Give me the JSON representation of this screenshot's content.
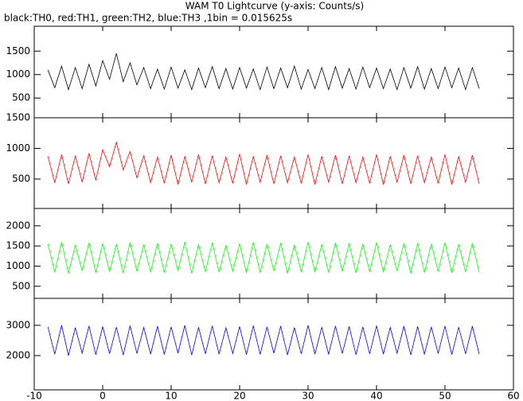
{
  "chart_data": [
    {
      "type": "line",
      "title": "WAM T0 Lightcurve (y-axis: Counts/s)",
      "subtitle": "black:TH0, red:TH1, green:TH2, blue:TH3 ,1bin = 0.015625s",
      "x": [
        -8,
        -7,
        -6,
        -5,
        -4,
        -3,
        -2,
        -1,
        0,
        1,
        2,
        3,
        4,
        5,
        6,
        7,
        8,
        9,
        10,
        11,
        12,
        13,
        14,
        15,
        16,
        17,
        18,
        19,
        20,
        21,
        22,
        23,
        24,
        25,
        26,
        27,
        28,
        29,
        30,
        31,
        32,
        33,
        34,
        35,
        36,
        37,
        38,
        39,
        40,
        41,
        42,
        43,
        44,
        45,
        46,
        47,
        48,
        49,
        50,
        51,
        52,
        53,
        54,
        55
      ],
      "values": [
        1100,
        720,
        1180,
        680,
        1150,
        700,
        1220,
        760,
        1300,
        900,
        1450,
        850,
        1250,
        780,
        1150,
        700,
        1120,
        690,
        1160,
        710,
        1100,
        680,
        1140,
        720,
        1170,
        700,
        1130,
        690,
        1150,
        710,
        1120,
        680,
        1160,
        700,
        1140,
        720,
        1180,
        690,
        1110,
        700,
        1150,
        680,
        1170,
        710,
        1130,
        690,
        1160,
        720,
        1140,
        700,
        1120,
        680,
        1150,
        710,
        1170,
        690,
        1130,
        700,
        1160,
        720,
        1140,
        680,
        1150,
        700
      ],
      "color": "#000000",
      "xlim": [
        -10,
        60
      ],
      "xticks": [
        -10,
        0,
        10,
        20,
        30,
        40,
        50,
        60
      ],
      "ylim": [
        80,
        2030
      ],
      "yticks": [
        500,
        1000,
        1500
      ]
    },
    {
      "type": "line",
      "x": [
        -8,
        -7,
        -6,
        -5,
        -4,
        -3,
        -2,
        -1,
        0,
        1,
        2,
        3,
        4,
        5,
        6,
        7,
        8,
        9,
        10,
        11,
        12,
        13,
        14,
        15,
        16,
        17,
        18,
        19,
        20,
        21,
        22,
        23,
        24,
        25,
        26,
        27,
        28,
        29,
        30,
        31,
        32,
        33,
        34,
        35,
        36,
        37,
        38,
        39,
        40,
        41,
        42,
        43,
        44,
        45,
        46,
        47,
        48,
        49,
        50,
        51,
        52,
        53,
        54,
        55
      ],
      "values": [
        870,
        440,
        900,
        420,
        880,
        450,
        920,
        480,
        980,
        700,
        1100,
        650,
        950,
        520,
        880,
        440,
        860,
        430,
        890,
        410,
        870,
        450,
        900,
        420,
        880,
        440,
        860,
        430,
        910,
        410,
        870,
        450,
        890,
        420,
        880,
        440,
        860,
        430,
        900,
        410,
        870,
        450,
        890,
        420,
        880,
        440,
        860,
        430,
        900,
        410,
        870,
        450,
        890,
        420,
        880,
        440,
        860,
        430,
        900,
        410,
        870,
        450,
        890,
        420
      ],
      "color": "#ff0000",
      "xlim": [
        -10,
        60
      ],
      "xticks": [
        -10,
        0,
        10,
        20,
        30,
        40,
        50,
        60
      ],
      "ylim": [
        20,
        1500
      ],
      "yticks": [
        500,
        1000,
        1500
      ]
    },
    {
      "type": "line",
      "x": [
        -8,
        -7,
        -6,
        -5,
        -4,
        -3,
        -2,
        -1,
        0,
        1,
        2,
        3,
        4,
        5,
        6,
        7,
        8,
        9,
        10,
        11,
        12,
        13,
        14,
        15,
        16,
        17,
        18,
        19,
        20,
        21,
        22,
        23,
        24,
        25,
        26,
        27,
        28,
        29,
        30,
        31,
        32,
        33,
        34,
        35,
        36,
        37,
        38,
        39,
        40,
        41,
        42,
        43,
        44,
        45,
        46,
        47,
        48,
        49,
        50,
        51,
        52,
        53,
        54,
        55
      ],
      "values": [
        1550,
        850,
        1600,
        820,
        1520,
        880,
        1580,
        840,
        1560,
        860,
        1540,
        830,
        1590,
        870,
        1530,
        850,
        1570,
        840,
        1550,
        880,
        1600,
        820,
        1540,
        860,
        1580,
        850,
        1520,
        870,
        1560,
        830,
        1590,
        840,
        1550,
        880,
        1570,
        820,
        1530,
        860,
        1600,
        850,
        1540,
        840,
        1580,
        870,
        1560,
        830,
        1550,
        860,
        1590,
        850,
        1530,
        880,
        1570,
        820,
        1560,
        840,
        1550,
        870,
        1580,
        830,
        1540,
        860,
        1570,
        850
      ],
      "color": "#00ff00",
      "xlim": [
        -10,
        60
      ],
      "xticks": [
        -10,
        0,
        10,
        20,
        30,
        40,
        50,
        60
      ],
      "ylim": [
        200,
        2430
      ],
      "yticks": [
        500,
        1000,
        1500,
        2000
      ]
    },
    {
      "type": "line",
      "x": [
        -8,
        -7,
        -6,
        -5,
        -4,
        -3,
        -2,
        -1,
        0,
        1,
        2,
        3,
        4,
        5,
        6,
        7,
        8,
        9,
        10,
        11,
        12,
        13,
        14,
        15,
        16,
        17,
        18,
        19,
        20,
        21,
        22,
        23,
        24,
        25,
        26,
        27,
        28,
        29,
        30,
        31,
        32,
        33,
        34,
        35,
        36,
        37,
        38,
        39,
        40,
        41,
        42,
        43,
        44,
        45,
        46,
        47,
        48,
        49,
        50,
        51,
        52,
        53,
        54,
        55
      ],
      "values": [
        2950,
        2050,
        3000,
        2000,
        2920,
        2080,
        2980,
        2030,
        2960,
        2060,
        2940,
        2020,
        2990,
        2070,
        2930,
        2050,
        2970,
        2040,
        2950,
        2080,
        3000,
        2020,
        2940,
        2060,
        2980,
        2050,
        2920,
        2070,
        2960,
        2030,
        2990,
        2040,
        2950,
        2080,
        2970,
        2020,
        2930,
        2060,
        3000,
        2050,
        2940,
        2040,
        2980,
        2070,
        2960,
        2030,
        2950,
        2060,
        2990,
        2050,
        2930,
        2080,
        2970,
        2020,
        2960,
        2040,
        2950,
        2070,
        2980,
        2030,
        2940,
        2060,
        2970,
        2050
      ],
      "color": "#0000ff",
      "xlim": [
        -10,
        60
      ],
      "xticks": [
        -10,
        0,
        10,
        20,
        30,
        40,
        50,
        60
      ],
      "ylim": [
        870,
        3890
      ],
      "yticks": [
        2000,
        3000
      ],
      "show_xtick_labels": true
    }
  ]
}
